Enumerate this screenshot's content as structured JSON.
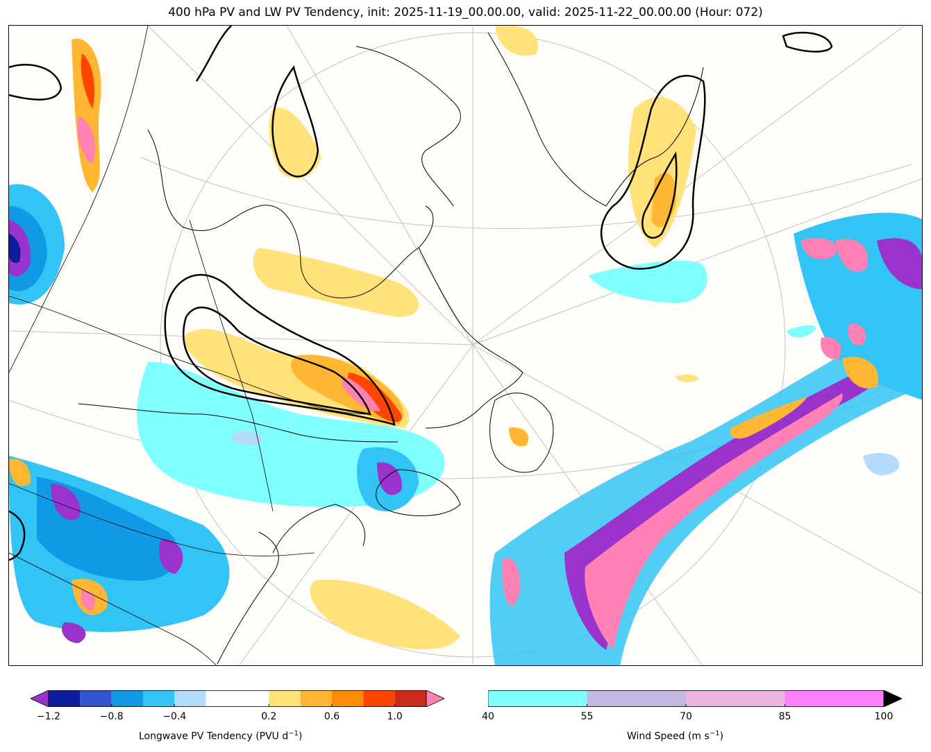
{
  "title": "400 hPa PV and LW PV Tendency, init: 2025-11-19_00.00.00, valid: 2025-11-22_00.00.00 (Hour: 072)",
  "colors": {
    "pv_tendency": [
      "#9933cc",
      "#0d1c9a",
      "#3354cc",
      "#1299e6",
      "#32c4f5",
      "#b3dcfa",
      "#ffffff",
      "#ffe27a",
      "#ffb733",
      "#ff8c00",
      "#ff4500",
      "#cc2a1a",
      "#ff80b3"
    ],
    "wind_speed": [
      "#80ffff",
      "#c3b6e3",
      "#ecb5e0",
      "#ff80ff"
    ],
    "pv_contour": "#000000",
    "coastline": "#000000",
    "grid": "#999999"
  },
  "chart_data": {
    "type": "heatmap",
    "title": "400 hPa PV and LW PV Tendency, init: 2025-11-19_00.00.00, valid: 2025-11-22_00.00.00 (Hour: 072)",
    "fields": [
      {
        "name": "Longwave PV Tendency",
        "units": "PVU d^-1",
        "display": "filled contours"
      },
      {
        "name": "Wind Speed",
        "units": "m s^-1",
        "display": "filled contours",
        "min_shown": 40
      },
      {
        "name": "400 hPa PV",
        "display": "black contour lines"
      }
    ],
    "colorbars": [
      {
        "label_text": "Longwave PV Tendency (PVU d",
        "label_sup": "−1",
        "label_close": ")",
        "levels": [
          -1.2,
          -1.0,
          -0.8,
          -0.6,
          -0.4,
          -0.2,
          0.2,
          0.4,
          0.6,
          0.8,
          1.0,
          1.2
        ],
        "extend": "both",
        "tick_labels": [
          "−1.2",
          "−0.8",
          "−0.4",
          "0.2",
          "0.6",
          "1.0"
        ],
        "tick_values": [
          -1.2,
          -0.8,
          -0.4,
          0.2,
          0.6,
          1.0
        ]
      },
      {
        "label_text": "Wind Speed (m s",
        "label_sup": "−1",
        "label_close": ")",
        "levels": [
          40,
          55,
          70,
          85,
          100
        ],
        "extend": "max",
        "tick_labels": [
          "40",
          "55",
          "70",
          "85",
          "100"
        ],
        "tick_values": [
          40,
          55,
          70,
          85,
          100
        ]
      }
    ]
  }
}
